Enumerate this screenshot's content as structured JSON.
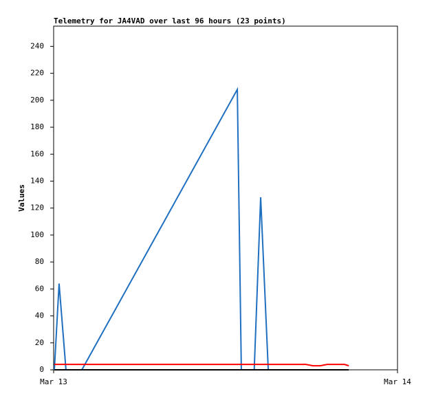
{
  "chart_data": {
    "type": "line",
    "title": "Telemetry for JA4VAD over last 96 hours (23 points)",
    "y_label": "Values",
    "x": [
      0.05,
      0.38,
      0.86,
      1.97,
      12.82,
      13.1,
      14.0,
      14.45,
      14.98,
      17.6,
      18.1,
      18.6,
      19.1,
      20.3,
      20.6
    ],
    "xlim": [
      0,
      24
    ],
    "xticks": [
      {
        "value": 0,
        "label": "Mar 13"
      },
      {
        "value": 24,
        "label": "Mar 14"
      }
    ],
    "ylim": [
      0,
      255
    ],
    "yticks": [
      0,
      20,
      40,
      60,
      80,
      100,
      120,
      140,
      160,
      180,
      200,
      220,
      240
    ],
    "grid": false,
    "series": [
      {
        "color": "#1f6fc0",
        "values": [
          0,
          64,
          0,
          0,
          208,
          0,
          0,
          128,
          0,
          0,
          0,
          0,
          0,
          0,
          0
        ]
      },
      {
        "color": "#ff0000",
        "values": [
          4,
          4,
          4,
          4,
          4,
          4,
          4,
          4,
          4,
          4,
          3,
          3,
          4,
          4,
          3
        ]
      },
      {
        "color": "#000000",
        "values": [
          0,
          0,
          0,
          0,
          0,
          0,
          0,
          0,
          0,
          0,
          0,
          0,
          0,
          0,
          0
        ]
      }
    ]
  }
}
